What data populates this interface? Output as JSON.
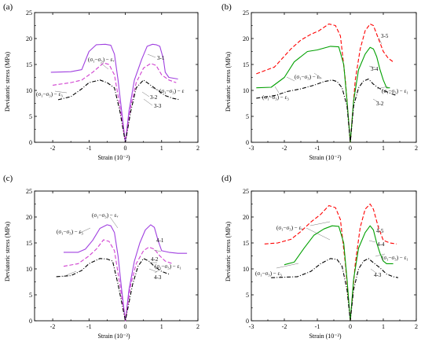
{
  "chart_data": [
    {
      "panel": "(a)",
      "type": "line",
      "xlabel": "Strain (10⁻²)",
      "ylabel": "Deviatoric stress (MPa)",
      "xlim": [
        -2.5,
        2
      ],
      "ylim": [
        0,
        25
      ],
      "xticks": [
        -2,
        -1,
        0,
        1,
        2
      ],
      "yticks": [
        0,
        5,
        10,
        15,
        20,
        25
      ],
      "series": [
        {
          "name": "3-1",
          "color": "#a040e0",
          "dash": "solid",
          "x": [
            -2.05,
            -1.5,
            -1.2,
            -1.0,
            -0.8,
            -0.55,
            -0.4,
            -0.3,
            -0.2,
            -0.1,
            0,
            0.1,
            0.25,
            0.45,
            0.6,
            0.75,
            0.85,
            0.95,
            1.05,
            1.1,
            1.2,
            1.45
          ],
          "y": [
            13.5,
            13.6,
            14.0,
            17.5,
            18.8,
            18.9,
            18.7,
            17.0,
            12.0,
            6.0,
            0,
            6.0,
            12.0,
            16.0,
            18.5,
            18.9,
            18.8,
            18.5,
            16.0,
            13.5,
            12.5,
            12.2
          ]
        },
        {
          "name": "3-2",
          "color": "#d040d0",
          "dash": "dashed",
          "x": [
            -2.0,
            -1.5,
            -1.2,
            -0.9,
            -0.6,
            -0.45,
            -0.3,
            -0.15,
            0,
            0.15,
            0.3,
            0.5,
            0.7,
            0.85,
            1.0,
            1.2,
            1.4
          ],
          "y": [
            11.0,
            11.5,
            12.0,
            13.5,
            15.3,
            15.0,
            13.0,
            7.0,
            0,
            7.0,
            11.5,
            14.3,
            15.2,
            14.8,
            13.0,
            12.0,
            11.5
          ]
        },
        {
          "name": "3-3",
          "color": "#000000",
          "dash": "dashdot",
          "x": [
            -1.85,
            -1.5,
            -1.2,
            -1.0,
            -0.7,
            -0.5,
            -0.3,
            -0.15,
            0,
            0.15,
            0.3,
            0.5,
            0.7,
            0.9,
            1.1,
            1.3,
            1.5
          ],
          "y": [
            8.2,
            8.8,
            10.3,
            11.5,
            12.0,
            11.5,
            10.5,
            6.0,
            0,
            6.0,
            10.5,
            12.0,
            11.0,
            10.0,
            9.0,
            8.5,
            8.2
          ]
        }
      ],
      "annotations": [
        "(σ₁−σ₃) − εᵥ",
        "(σ₁−σ₃) − ε₃",
        "(σ₁−σ₃) − ε",
        "3-1",
        "3-2",
        "3-3"
      ]
    },
    {
      "panel": "(b)",
      "type": "line",
      "xlabel": "Strain (10⁻²)",
      "ylabel": "Deviatoric stress (MPa)",
      "xlim": [
        -3,
        2
      ],
      "ylim": [
        0,
        25
      ],
      "xticks": [
        -3,
        -2,
        -1,
        0,
        1,
        2
      ],
      "yticks": [
        0,
        5,
        10,
        15,
        20,
        25
      ],
      "series": [
        {
          "name": "3-5",
          "color": "#ff0000",
          "dash": "dashed",
          "x": [
            -2.85,
            -2.3,
            -1.8,
            -1.5,
            -1.2,
            -0.95,
            -0.65,
            -0.45,
            -0.3,
            -0.15,
            0,
            0.15,
            0.3,
            0.45,
            0.6,
            0.7,
            0.85,
            1.0,
            1.15,
            1.3
          ],
          "y": [
            13.2,
            14.5,
            18.0,
            19.7,
            20.8,
            21.5,
            22.8,
            22.5,
            20.5,
            12.0,
            0,
            12.0,
            18.0,
            21.5,
            22.8,
            22.5,
            20.0,
            17.5,
            16.2,
            15.5
          ]
        },
        {
          "name": "3-4",
          "color": "#00a000",
          "dash": "solid",
          "x": [
            -2.85,
            -2.4,
            -2.0,
            -1.7,
            -1.3,
            -1.0,
            -0.6,
            -0.35,
            -0.2,
            -0.1,
            0,
            0.1,
            0.25,
            0.45,
            0.6,
            0.7,
            0.8,
            0.9,
            1.0,
            1.1,
            1.2
          ],
          "y": [
            10.5,
            10.6,
            12.5,
            15.5,
            17.5,
            17.8,
            18.5,
            18.4,
            15.0,
            8.0,
            0,
            8.0,
            14.0,
            17.0,
            18.3,
            18.0,
            16.5,
            14.0,
            12.0,
            10.5,
            10.5
          ]
        },
        {
          "name": "3-2",
          "color": "#000000",
          "dash": "dashdot",
          "x": [
            -2.85,
            -2.3,
            -1.9,
            -1.5,
            -1.1,
            -0.8,
            -0.55,
            -0.4,
            -0.25,
            -0.1,
            0,
            0.1,
            0.25,
            0.4,
            0.55,
            0.7,
            0.85,
            1.0,
            1.2,
            1.4
          ],
          "y": [
            8.5,
            9.0,
            9.8,
            10.3,
            11.0,
            11.7,
            12.0,
            11.7,
            10.5,
            7.0,
            0,
            7.0,
            10.5,
            11.8,
            12.2,
            11.2,
            10.5,
            10.0,
            9.5,
            9.0
          ]
        }
      ],
      "annotations": [
        "(σ₁−σ₃) − εᵥ",
        "(σ₁−σ₃) − ε₃",
        "(σ₁−σ₃) − ε₁",
        "3-5",
        "3-4",
        "3-2"
      ]
    },
    {
      "panel": "(c)",
      "type": "line",
      "xlabel": "Strain (10⁻²)",
      "ylabel": "Deviatoric stress (MPa)",
      "xlim": [
        -2.5,
        2
      ],
      "ylim": [
        0,
        25
      ],
      "xticks": [
        -2,
        -1,
        0,
        1,
        2
      ],
      "yticks": [
        0,
        5,
        10,
        15,
        20,
        25
      ],
      "series": [
        {
          "name": "4-1",
          "color": "#a040e0",
          "dash": "solid",
          "x": [
            -1.7,
            -1.3,
            -1.1,
            -0.9,
            -0.7,
            -0.5,
            -0.4,
            -0.3,
            -0.2,
            -0.1,
            0,
            0.1,
            0.25,
            0.4,
            0.55,
            0.7,
            0.8,
            0.9,
            1.0,
            1.2,
            1.45,
            1.7
          ],
          "y": [
            13.2,
            13.2,
            13.8,
            15.5,
            17.8,
            18.5,
            18.3,
            17.0,
            12.5,
            6.0,
            0,
            6.0,
            11.5,
            15.0,
            17.5,
            18.5,
            18.0,
            15.5,
            13.5,
            13.2,
            13.0,
            13.0
          ]
        },
        {
          "name": "4-2",
          "color": "#d040d0",
          "dash": "dashed",
          "x": [
            -1.7,
            -1.3,
            -1.0,
            -0.8,
            -0.6,
            -0.45,
            -0.3,
            -0.15,
            0,
            0.15,
            0.3,
            0.5,
            0.65,
            0.8,
            0.95,
            1.1,
            1.3
          ],
          "y": [
            10.5,
            11.0,
            12.5,
            13.8,
            15.6,
            15.3,
            13.5,
            7.0,
            0,
            7.0,
            11.0,
            13.5,
            14.2,
            13.8,
            12.5,
            11.5,
            11.0
          ]
        },
        {
          "name": "4-3",
          "color": "#000000",
          "dash": "dashdot",
          "x": [
            -1.9,
            -1.5,
            -1.2,
            -1.0,
            -0.7,
            -0.5,
            -0.35,
            -0.2,
            0,
            0.2,
            0.35,
            0.5,
            0.65,
            0.8,
            1.0,
            1.2
          ],
          "y": [
            8.5,
            8.7,
            9.7,
            11.0,
            12.0,
            11.9,
            11.5,
            7.0,
            0,
            7.0,
            10.5,
            12.0,
            11.5,
            10.5,
            9.5,
            9.0
          ]
        }
      ],
      "annotations": [
        "(σ₁−σ₃) − εᵥ",
        "(σ₁−σ₃) − ε₃",
        "(σ₁−σ₃) − ε₁",
        "4-1",
        "4-2",
        "4-3"
      ]
    },
    {
      "panel": "(d)",
      "type": "line",
      "xlabel": "Strain (10⁻²)",
      "ylabel": "Deviatoric stress (MPa)",
      "xlim": [
        -3,
        2
      ],
      "ylim": [
        0,
        25
      ],
      "xticks": [
        -3,
        -2,
        -1,
        0,
        1,
        2
      ],
      "yticks": [
        0,
        5,
        10,
        15,
        20,
        25
      ],
      "series": [
        {
          "name": "4-5",
          "color": "#ff0000",
          "dash": "dashed",
          "x": [
            -2.6,
            -2.2,
            -1.8,
            -1.5,
            -1.2,
            -0.9,
            -0.65,
            -0.45,
            -0.3,
            -0.15,
            0,
            0.15,
            0.3,
            0.45,
            0.6,
            0.7,
            0.85,
            1.0,
            1.2,
            1.4
          ],
          "y": [
            14.8,
            15.0,
            15.7,
            17.2,
            19.0,
            20.5,
            22.2,
            21.8,
            19.5,
            11.0,
            0,
            11.0,
            18.0,
            21.5,
            22.5,
            21.5,
            18.0,
            15.5,
            15.0,
            14.8
          ]
        },
        {
          "name": "4-4",
          "color": "#00a000",
          "dash": "solid",
          "x": [
            -2.0,
            -1.7,
            -1.4,
            -1.1,
            -0.8,
            -0.55,
            -0.35,
            -0.2,
            -0.1,
            0,
            0.1,
            0.25,
            0.45,
            0.6,
            0.7,
            0.8,
            0.9,
            1.0,
            1.1,
            1.3
          ],
          "y": [
            10.8,
            11.3,
            14.0,
            16.5,
            17.7,
            18.3,
            18.2,
            15.0,
            8.0,
            0,
            8.0,
            14.0,
            17.0,
            18.3,
            17.5,
            15.0,
            13.0,
            11.5,
            11.0,
            11.0
          ]
        },
        {
          "name": "4-3",
          "color": "#000000",
          "dash": "dashdot",
          "x": [
            -2.4,
            -2.0,
            -1.6,
            -1.2,
            -0.9,
            -0.6,
            -0.4,
            -0.25,
            -0.1,
            0,
            0.1,
            0.25,
            0.4,
            0.55,
            0.7,
            0.9,
            1.1,
            1.3,
            1.45
          ],
          "y": [
            8.3,
            8.4,
            8.5,
            9.5,
            11.0,
            12.0,
            11.8,
            10.5,
            6.0,
            0,
            6.0,
            10.0,
            11.5,
            12.0,
            11.2,
            10.2,
            9.0,
            8.5,
            8.3
          ]
        }
      ],
      "annotations": [
        "(σ₁−σ₃) − εᵥ",
        "(σ₁−σ₃) − ε₃",
        "(σ₁−σ₃) − ε₁",
        "4-5",
        "4-4",
        "4-3"
      ]
    }
  ]
}
